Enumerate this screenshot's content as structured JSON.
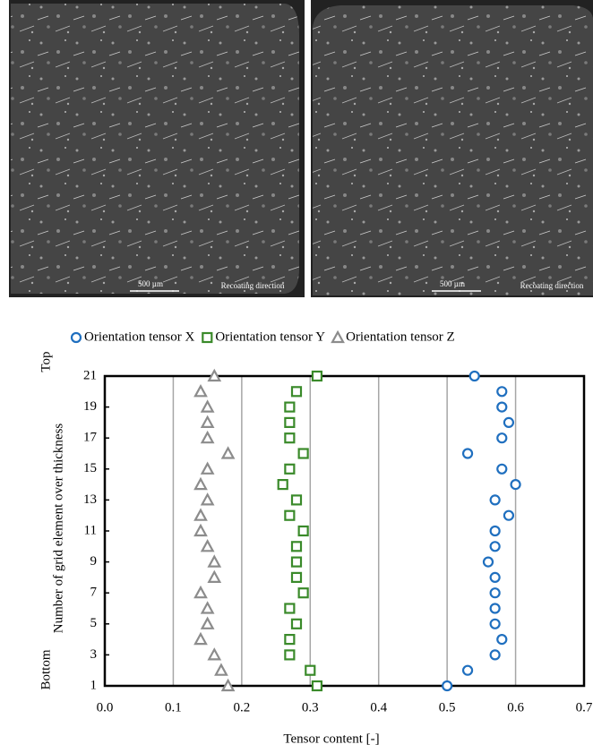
{
  "images": [
    {
      "scale": "500 µm",
      "direction": "Recoating direction"
    },
    {
      "scale": "500 µm",
      "direction": "Recoating direction"
    }
  ],
  "chart_data": {
    "type": "scatter",
    "x_label": "Tensor content [-]",
    "y_label": "Number of grid element over thickness",
    "top_label": "Top",
    "bottom_label": "Bottom",
    "x": [
      1,
      2,
      3,
      4,
      5,
      6,
      7,
      8,
      9,
      10,
      11,
      12,
      13,
      14,
      15,
      16,
      17,
      18,
      19,
      20,
      21
    ],
    "series": [
      {
        "name": "Orientation tensor X",
        "color": "#1f6fbf",
        "marker": "circle",
        "values": [
          0.5,
          0.53,
          0.57,
          0.58,
          0.57,
          0.57,
          0.57,
          0.57,
          0.56,
          0.57,
          0.57,
          0.59,
          0.57,
          0.6,
          0.58,
          0.53,
          0.58,
          0.59,
          0.58,
          0.58,
          0.54
        ]
      },
      {
        "name": "Orientation tensor Y",
        "color": "#3a8a2a",
        "marker": "square",
        "values": [
          0.31,
          0.3,
          0.27,
          0.27,
          0.28,
          0.27,
          0.29,
          0.28,
          0.28,
          0.28,
          0.29,
          0.27,
          0.28,
          0.26,
          0.27,
          0.29,
          0.27,
          0.27,
          0.27,
          0.28,
          0.31
        ]
      },
      {
        "name": "Orientation tensor Z",
        "color": "#8c8c8c",
        "marker": "triangle",
        "values": [
          0.18,
          0.17,
          0.16,
          0.14,
          0.15,
          0.15,
          0.14,
          0.16,
          0.16,
          0.15,
          0.14,
          0.14,
          0.15,
          0.14,
          0.15,
          0.18,
          0.15,
          0.15,
          0.15,
          0.14,
          0.16
        ]
      }
    ],
    "xlim": [
      0,
      0.7
    ],
    "xticks": [
      {
        "value": 0,
        "label": "0.0"
      },
      0.1,
      0.2,
      0.3,
      0.4,
      0.5,
      0.6,
      0.7
    ],
    "ylim": [
      1,
      21
    ],
    "yticks": [
      1,
      3,
      5,
      7,
      9,
      11,
      13,
      15,
      17,
      19,
      21
    ],
    "grid": true
  }
}
